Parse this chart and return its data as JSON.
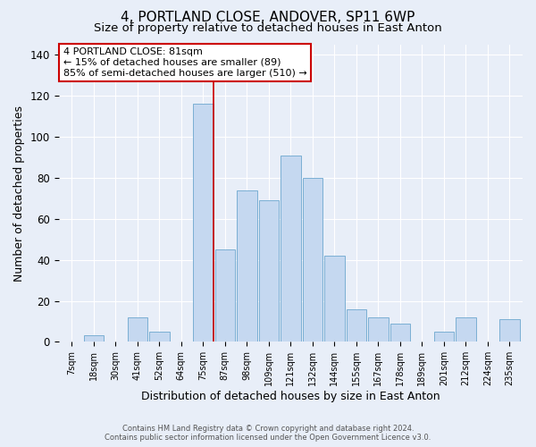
{
  "title": "4, PORTLAND CLOSE, ANDOVER, SP11 6WP",
  "subtitle": "Size of property relative to detached houses in East Anton",
  "xlabel": "Distribution of detached houses by size in East Anton",
  "ylabel": "Number of detached properties",
  "bar_labels": [
    "7sqm",
    "18sqm",
    "30sqm",
    "41sqm",
    "52sqm",
    "64sqm",
    "75sqm",
    "87sqm",
    "98sqm",
    "109sqm",
    "121sqm",
    "132sqm",
    "144sqm",
    "155sqm",
    "167sqm",
    "178sqm",
    "189sqm",
    "201sqm",
    "212sqm",
    "224sqm",
    "235sqm"
  ],
  "bar_values": [
    0,
    3,
    0,
    12,
    5,
    0,
    116,
    45,
    74,
    69,
    91,
    80,
    42,
    16,
    12,
    9,
    0,
    5,
    12,
    0,
    11
  ],
  "bar_color": "#c5d8f0",
  "bar_edgecolor": "#7bafd4",
  "vline_x_index": 6,
  "vline_color": "#cc0000",
  "annotation_title": "4 PORTLAND CLOSE: 81sqm",
  "annotation_line1": "← 15% of detached houses are smaller (89)",
  "annotation_line2": "85% of semi-detached houses are larger (510) →",
  "annotation_box_edgecolor": "#cc0000",
  "ylim": [
    0,
    145
  ],
  "yticks": [
    0,
    20,
    40,
    60,
    80,
    100,
    120,
    140
  ],
  "footer1": "Contains HM Land Registry data © Crown copyright and database right 2024.",
  "footer2": "Contains public sector information licensed under the Open Government Licence v3.0.",
  "background_color": "#e8eef8",
  "title_fontsize": 11,
  "subtitle_fontsize": 9.5,
  "xlabel_fontsize": 9,
  "ylabel_fontsize": 9
}
